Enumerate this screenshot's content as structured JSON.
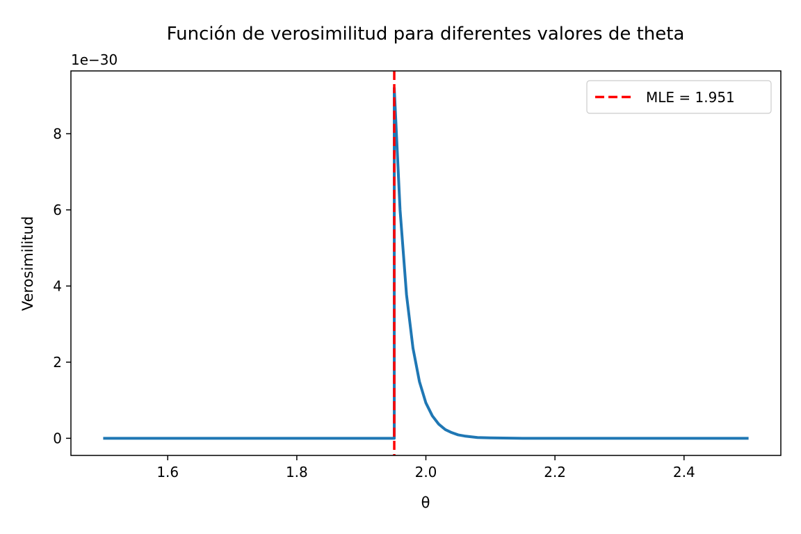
{
  "chart_data": {
    "type": "line",
    "title": "Función de verosimilitud para diferentes valores de theta",
    "xlabel": "θ",
    "ylabel": "Verosimilitud",
    "y_offset_label": "1e−30",
    "xlim": [
      1.45,
      2.55
    ],
    "ylim": [
      -0.45,
      9.65
    ],
    "x_ticks": [
      1.6,
      1.8,
      2.0,
      2.2,
      2.4
    ],
    "x_tick_labels": [
      "1.6",
      "1.8",
      "2.0",
      "2.2",
      "2.4"
    ],
    "y_ticks": [
      0,
      2,
      4,
      6,
      8
    ],
    "y_tick_labels": [
      "0",
      "2",
      "4",
      "6",
      "8"
    ],
    "grid": false,
    "legend_position": "top-right",
    "series": [
      {
        "name": "",
        "color": "#1f77b4",
        "x": [
          1.5,
          1.951,
          1.951,
          1.96,
          1.97,
          1.98,
          1.99,
          2.0,
          2.01,
          2.02,
          2.03,
          2.04,
          2.05,
          2.06,
          2.08,
          2.1,
          2.15,
          2.2,
          2.3,
          2.5
        ],
        "values": [
          0,
          0,
          9.2,
          6.0,
          3.77,
          2.37,
          1.49,
          0.93,
          0.59,
          0.37,
          0.23,
          0.15,
          0.09,
          0.06,
          0.02,
          0.01,
          0.0,
          0.0,
          0.0,
          0.0
        ]
      }
    ],
    "reference_lines": [
      {
        "orientation": "vertical",
        "x": 1.951,
        "name": "MLE = 1.951",
        "color": "#ff0000",
        "style": "dashed"
      }
    ]
  }
}
